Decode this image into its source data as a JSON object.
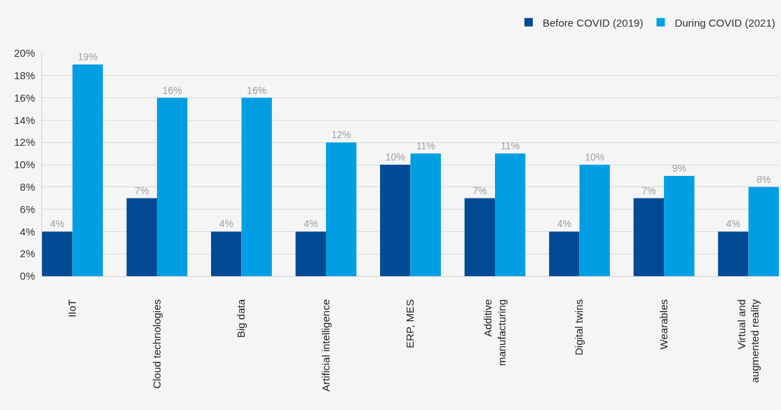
{
  "chart_data": {
    "type": "bar",
    "categories": [
      "IIoT",
      "Cloud technologies",
      "Big data",
      "Artificial intelligence",
      "ERP, MES",
      "Additive\nmanufacturing",
      "Digital twins",
      "Wearables",
      "Virtual and\naugmented reality"
    ],
    "series": [
      {
        "name": "Before COVID (2019)",
        "color": "#004b93",
        "values": [
          4,
          7,
          4,
          4,
          10,
          7,
          4,
          7,
          4
        ],
        "value_labels": [
          "4%",
          "7%",
          "4%",
          "4%",
          "10%",
          "7%",
          "4%",
          "7%",
          "4%"
        ]
      },
      {
        "name": "During COVID (2021)",
        "color": "#009fe3",
        "values": [
          19,
          16,
          16,
          12,
          11,
          11,
          10,
          9,
          8
        ],
        "value_labels": [
          "19%",
          "16%",
          "16%",
          "12%",
          "11%",
          "11%",
          "10%",
          "9%",
          "8%"
        ]
      }
    ],
    "ylim": [
      0,
      20
    ],
    "yticks": [
      {
        "value": 0,
        "label": "0%"
      },
      {
        "value": 2,
        "label": "2%"
      },
      {
        "value": 4,
        "label": "4%"
      },
      {
        "value": 6,
        "label": "6%"
      },
      {
        "value": 8,
        "label": "8%"
      },
      {
        "value": 10,
        "label": "10%"
      },
      {
        "value": 12,
        "label": "12%"
      },
      {
        "value": 14,
        "label": "14%"
      },
      {
        "value": 16,
        "label": "16%"
      },
      {
        "value": 18,
        "label": "18%"
      },
      {
        "value": 20,
        "label": "20%"
      }
    ],
    "grid": "y",
    "legend": "top right"
  }
}
